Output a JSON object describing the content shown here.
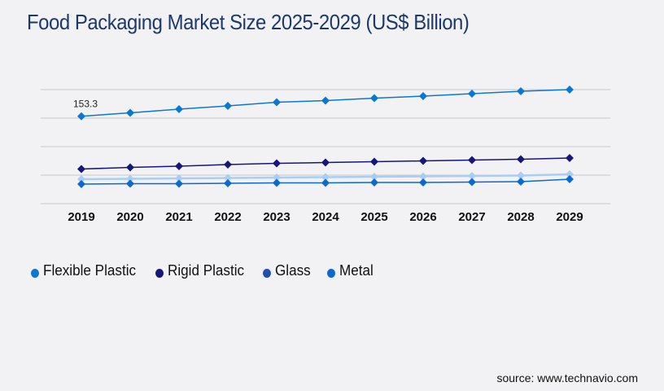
{
  "chart_data": {
    "type": "line",
    "title": "Food Packaging Market Size 2025-2029 (US$ Billion)",
    "xlabel": "",
    "ylabel": "",
    "x": [
      "2019",
      "2020",
      "2021",
      "2022",
      "2023",
      "2024",
      "2025",
      "2026",
      "2027",
      "2028",
      "2029"
    ],
    "ylim": [
      0,
      200
    ],
    "grid": true,
    "gridlines": [
      0,
      50,
      100,
      150,
      200
    ],
    "legend_position": "bottom-left",
    "series": [
      {
        "name": "Flexible Plastic",
        "color": "#0a78d2",
        "values": [
          153.3,
          159.3,
          165.7,
          171.4,
          177.9,
          180.7,
          185.0,
          188.6,
          192.9,
          197.1,
          200.0
        ]
      },
      {
        "name": "Rigid Plastic",
        "color": "#17177a",
        "values": [
          60.7,
          63.6,
          65.7,
          68.6,
          70.7,
          72.1,
          73.6,
          75.0,
          76.4,
          77.9,
          80.0
        ]
      },
      {
        "name": "Glass",
        "color": "#a9cdf5",
        "values": [
          42.9,
          43.6,
          44.3,
          45.0,
          45.7,
          46.4,
          47.1,
          47.9,
          48.6,
          49.3,
          51.4
        ]
      },
      {
        "name": "Metal",
        "color": "#0a6ad0",
        "values": [
          34.3,
          35.0,
          35.0,
          35.7,
          36.4,
          36.4,
          37.1,
          37.1,
          37.9,
          38.6,
          42.9
        ]
      }
    ],
    "annotations": [
      {
        "series": "Flexible Plastic",
        "x": "2019",
        "label": "153.3"
      }
    ]
  },
  "legend": [
    {
      "label": "Flexible Plastic",
      "color": "#0a78d2"
    },
    {
      "label": "Rigid Plastic",
      "color": "#17177a"
    },
    {
      "label": "Glass",
      "color": "#1f4fb0"
    },
    {
      "label": "Metal",
      "color": "#0a6ad0"
    }
  ],
  "source": "source: www.technavio.com"
}
